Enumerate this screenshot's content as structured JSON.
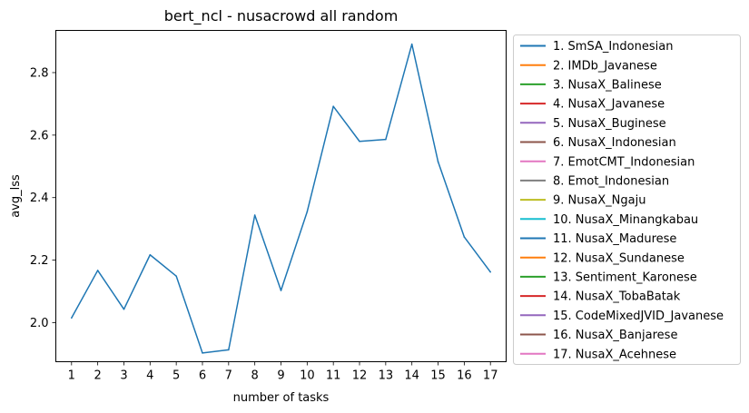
{
  "chart_data": {
    "type": "line",
    "title": "bert_ncl - nusacrowd all random",
    "xlabel": "number of tasks",
    "ylabel": "avg_lss",
    "x": [
      1,
      2,
      3,
      4,
      5,
      6,
      7,
      8,
      9,
      10,
      11,
      12,
      13,
      14,
      15,
      16,
      17
    ],
    "xlim": [
      0.4,
      17.6
    ],
    "ylim": [
      1.875,
      2.935
    ],
    "yticks": [
      2.0,
      2.2,
      2.4,
      2.6,
      2.8
    ],
    "grid": false,
    "legend_position": "outside-right",
    "series": [
      {
        "name": "1. SmSA_Indonesian",
        "color": "#1f77b4",
        "values": [
          2.015,
          2.167,
          2.043,
          2.217,
          2.149,
          1.903,
          1.913,
          2.344,
          2.103,
          2.355,
          2.692,
          2.58,
          2.586,
          2.891,
          2.515,
          2.274,
          2.162
        ]
      }
    ],
    "legend": [
      {
        "label": "1. SmSA_Indonesian",
        "color": "#1f77b4"
      },
      {
        "label": "2. IMDb_Javanese",
        "color": "#ff7f0e"
      },
      {
        "label": "3. NusaX_Balinese",
        "color": "#2ca02c"
      },
      {
        "label": "4. NusaX_Javanese",
        "color": "#d62728"
      },
      {
        "label": "5. NusaX_Buginese",
        "color": "#9467bd"
      },
      {
        "label": "6. NusaX_Indonesian",
        "color": "#8c564b"
      },
      {
        "label": "7. EmotCMT_Indonesian",
        "color": "#e377c2"
      },
      {
        "label": "8. Emot_Indonesian",
        "color": "#7f7f7f"
      },
      {
        "label": "9. NusaX_Ngaju",
        "color": "#bcbd22"
      },
      {
        "label": "10. NusaX_Minangkabau",
        "color": "#17becf"
      },
      {
        "label": "11. NusaX_Madurese",
        "color": "#1f77b4"
      },
      {
        "label": "12. NusaX_Sundanese",
        "color": "#ff7f0e"
      },
      {
        "label": "13. Sentiment_Karonese",
        "color": "#2ca02c"
      },
      {
        "label": "14. NusaX_TobaBatak",
        "color": "#d62728"
      },
      {
        "label": "15. CodeMixedJVID_Javanese",
        "color": "#9467bd"
      },
      {
        "label": "16. NusaX_Banjarese",
        "color": "#8c564b"
      },
      {
        "label": "17. NusaX_Acehnese",
        "color": "#e377c2"
      }
    ]
  }
}
